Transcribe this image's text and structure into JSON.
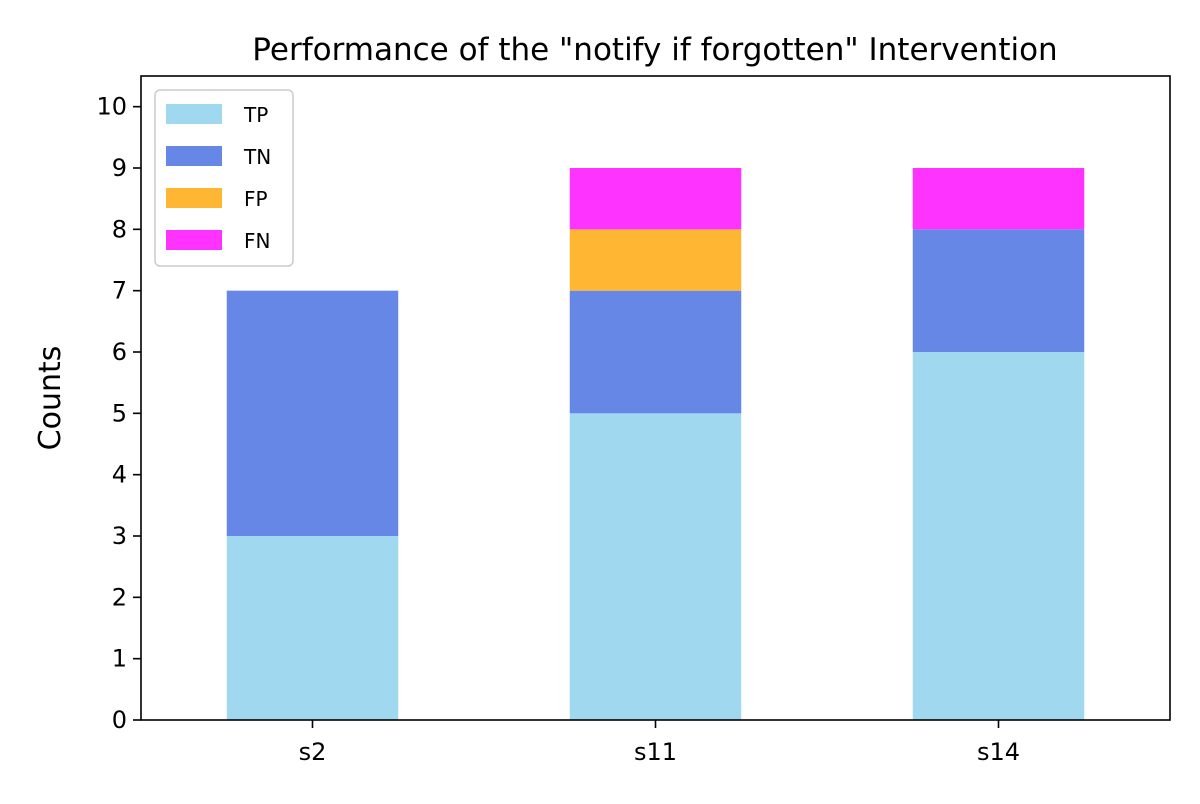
{
  "chart_data": {
    "type": "bar",
    "stacked": true,
    "title": "Performance of the \"notify if forgotten\" Intervention",
    "xlabel": "",
    "ylabel": "Counts",
    "categories": [
      "s2",
      "s11",
      "s14"
    ],
    "series": [
      {
        "name": "TP",
        "values": [
          3,
          5,
          6
        ],
        "color": "#9fd8ef"
      },
      {
        "name": "TN",
        "values": [
          4,
          2,
          2
        ],
        "color": "#6787e7"
      },
      {
        "name": "FP",
        "values": [
          0,
          1,
          0
        ],
        "color": "#ffb733"
      },
      {
        "name": "FN",
        "values": [
          0,
          1,
          1
        ],
        "color": "#ff33ff"
      }
    ],
    "ylim": [
      0,
      10.5
    ],
    "yticks": [
      0,
      1,
      2,
      3,
      4,
      5,
      6,
      7,
      8,
      9,
      10
    ],
    "grid": false,
    "legend": "top-left"
  }
}
